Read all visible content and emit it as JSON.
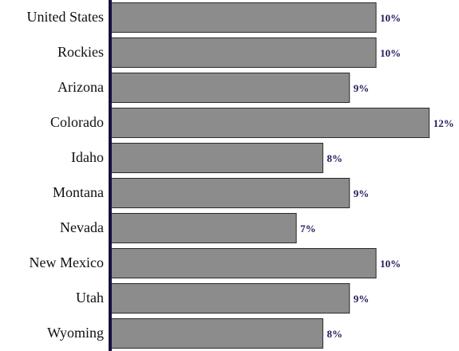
{
  "chart_data": {
    "type": "bar",
    "orientation": "horizontal",
    "categories": [
      "United States",
      "Rockies",
      "Arizona",
      "Colorado",
      "Idaho",
      "Montana",
      "Nevada",
      "New Mexico",
      "Utah",
      "Wyoming"
    ],
    "values": [
      10,
      10,
      9,
      12,
      8,
      9,
      7,
      10,
      9,
      8
    ],
    "value_labels": [
      "10%",
      "10%",
      "9%",
      "12%",
      "8%",
      "9%",
      "7%",
      "10%",
      "9%",
      "8%"
    ],
    "color": "#8c8c8c",
    "xlim": [
      0,
      13
    ]
  }
}
